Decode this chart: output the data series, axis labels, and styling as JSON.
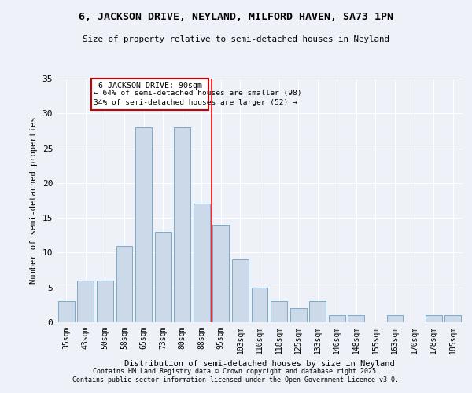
{
  "title": "6, JACKSON DRIVE, NEYLAND, MILFORD HAVEN, SA73 1PN",
  "subtitle": "Size of property relative to semi-detached houses in Neyland",
  "xlabel": "Distribution of semi-detached houses by size in Neyland",
  "ylabel": "Number of semi-detached properties",
  "categories": [
    "35sqm",
    "43sqm",
    "50sqm",
    "58sqm",
    "65sqm",
    "73sqm",
    "80sqm",
    "88sqm",
    "95sqm",
    "103sqm",
    "110sqm",
    "118sqm",
    "125sqm",
    "133sqm",
    "140sqm",
    "148sqm",
    "155sqm",
    "163sqm",
    "170sqm",
    "178sqm",
    "185sqm"
  ],
  "values": [
    3,
    6,
    6,
    11,
    28,
    13,
    28,
    17,
    14,
    9,
    5,
    3,
    2,
    3,
    1,
    1,
    0,
    1,
    0,
    1,
    1
  ],
  "bar_color": "#ccd9e8",
  "bar_edge_color": "#7aaac8",
  "annotation_title": "6 JACKSON DRIVE: 90sqm",
  "annotation_line1": "← 64% of semi-detached houses are smaller (98)",
  "annotation_line2": "34% of semi-detached houses are larger (52) →",
  "annotation_box_color": "#cc0000",
  "ylim": [
    0,
    35
  ],
  "yticks": [
    0,
    5,
    10,
    15,
    20,
    25,
    30,
    35
  ],
  "background_color": "#eef2f8",
  "footer_line1": "Contains HM Land Registry data © Crown copyright and database right 2025.",
  "footer_line2": "Contains public sector information licensed under the Open Government Licence v3.0.",
  "prop_line_index": 7.5
}
